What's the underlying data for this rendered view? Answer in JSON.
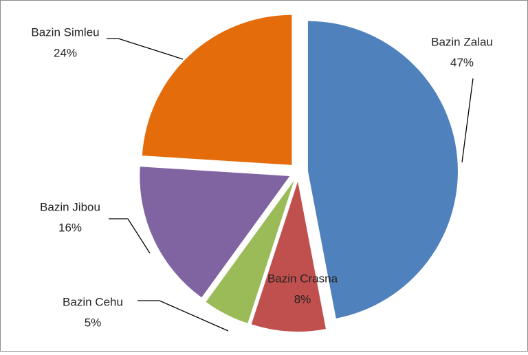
{
  "chart_data": {
    "type": "pie",
    "categories": [
      "Bazin Zalau",
      "Bazin Crasna",
      "Bazin Cehu",
      "Bazin Jibou",
      "Bazin Simleu"
    ],
    "values": [
      47,
      8,
      5,
      16,
      24
    ],
    "value_labels": [
      "47%",
      "8%",
      "5%",
      "16%",
      "24%"
    ],
    "colors": [
      "#4f81bd",
      "#c0504d",
      "#9bbb59",
      "#8064a2",
      "#e46c0a"
    ]
  }
}
